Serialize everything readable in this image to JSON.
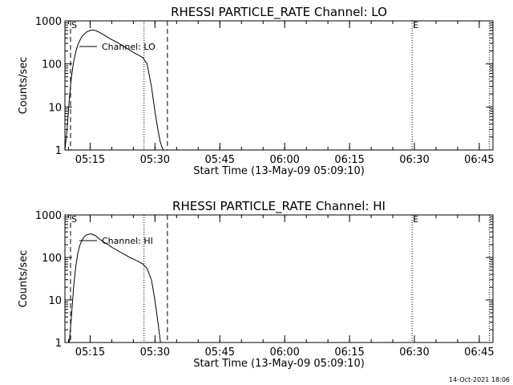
{
  "chart_data": [
    {
      "type": "line",
      "title": "RHESSI PARTICLE_RATE Channel: LO",
      "xlabel": "Start Time (13-May-09 05:09:10)",
      "ylabel": "Counts/sec",
      "yscale": "log",
      "ylim": [
        1,
        1000
      ],
      "ytick_labels": [
        "1",
        "10",
        "100",
        "1000"
      ],
      "xlim_minutes_after_start": [
        0,
        99
      ],
      "xtick_labels": [
        "05:15",
        "05:30",
        "05:45",
        "06:00",
        "06:15",
        "06:30",
        "06:45"
      ],
      "xtick_minutes_after_start": [
        5.83,
        20.83,
        35.83,
        50.83,
        65.83,
        80.83,
        95.83
      ],
      "legend": "Channel: LO",
      "legend_position": "top-left",
      "markers": [
        {
          "label": "S",
          "minute": 1.3,
          "style": "dashed"
        },
        {
          "label": "",
          "minute": 18.3,
          "style": "dotted"
        },
        {
          "label": "",
          "minute": 23.7,
          "style": "dashed"
        },
        {
          "label": "E",
          "minute": 80.3,
          "style": "dotted"
        },
        {
          "label": "",
          "minute": 98.2,
          "style": "dotted"
        }
      ],
      "x": [
        0.0,
        0.5,
        1.0,
        1.5,
        2.0,
        2.5,
        3.0,
        3.5,
        4.0,
        5.0,
        6.0,
        7.0,
        8.0,
        9.0,
        10.0,
        11.0,
        12.0,
        13.0,
        14.0,
        15.0,
        16.0,
        17.0,
        18.0,
        19.0,
        20.0,
        20.8,
        21.5,
        22.0,
        22.4,
        22.8
      ],
      "values": [
        1,
        3,
        15,
        50,
        110,
        190,
        280,
        360,
        440,
        550,
        610,
        600,
        540,
        470,
        410,
        360,
        320,
        280,
        240,
        210,
        180,
        160,
        140,
        100,
        30,
        8,
        3,
        1.6,
        1.2,
        1
      ]
    },
    {
      "type": "line",
      "title": "RHESSI PARTICLE_RATE Channel: HI",
      "xlabel": "Start Time (13-May-09 05:09:10)",
      "ylabel": "Counts/sec",
      "yscale": "log",
      "ylim": [
        1,
        1000
      ],
      "ytick_labels": [
        "1",
        "10",
        "100",
        "1000"
      ],
      "xlim_minutes_after_start": [
        0,
        99
      ],
      "xtick_labels": [
        "05:15",
        "05:30",
        "05:45",
        "06:00",
        "06:15",
        "06:30",
        "06:45"
      ],
      "xtick_minutes_after_start": [
        5.83,
        20.83,
        35.83,
        50.83,
        65.83,
        80.83,
        95.83
      ],
      "legend": "Channel: HI",
      "legend_position": "top-left",
      "markers": [
        {
          "label": "S",
          "minute": 1.3,
          "style": "dashed"
        },
        {
          "label": "",
          "minute": 18.3,
          "style": "dotted"
        },
        {
          "label": "",
          "minute": 23.7,
          "style": "dashed"
        },
        {
          "label": "E",
          "minute": 80.3,
          "style": "dotted"
        },
        {
          "label": "",
          "minute": 98.2,
          "style": "dotted"
        }
      ],
      "x": [
        1.0,
        1.5,
        2.0,
        2.5,
        3.0,
        3.5,
        4.0,
        4.5,
        5.0,
        6.0,
        7.0,
        8.0,
        9.0,
        10.0,
        11.0,
        12.0,
        13.0,
        14.0,
        15.0,
        16.0,
        17.0,
        18.0,
        19.0,
        20.0,
        20.8,
        21.5,
        21.9,
        22.1
      ],
      "values": [
        1,
        4,
        20,
        60,
        130,
        200,
        260,
        310,
        340,
        360,
        330,
        270,
        230,
        200,
        170,
        150,
        130,
        115,
        100,
        90,
        80,
        70,
        55,
        30,
        10,
        3,
        1.5,
        1
      ]
    }
  ],
  "timestamp": "14-Oct-2021 18:06"
}
